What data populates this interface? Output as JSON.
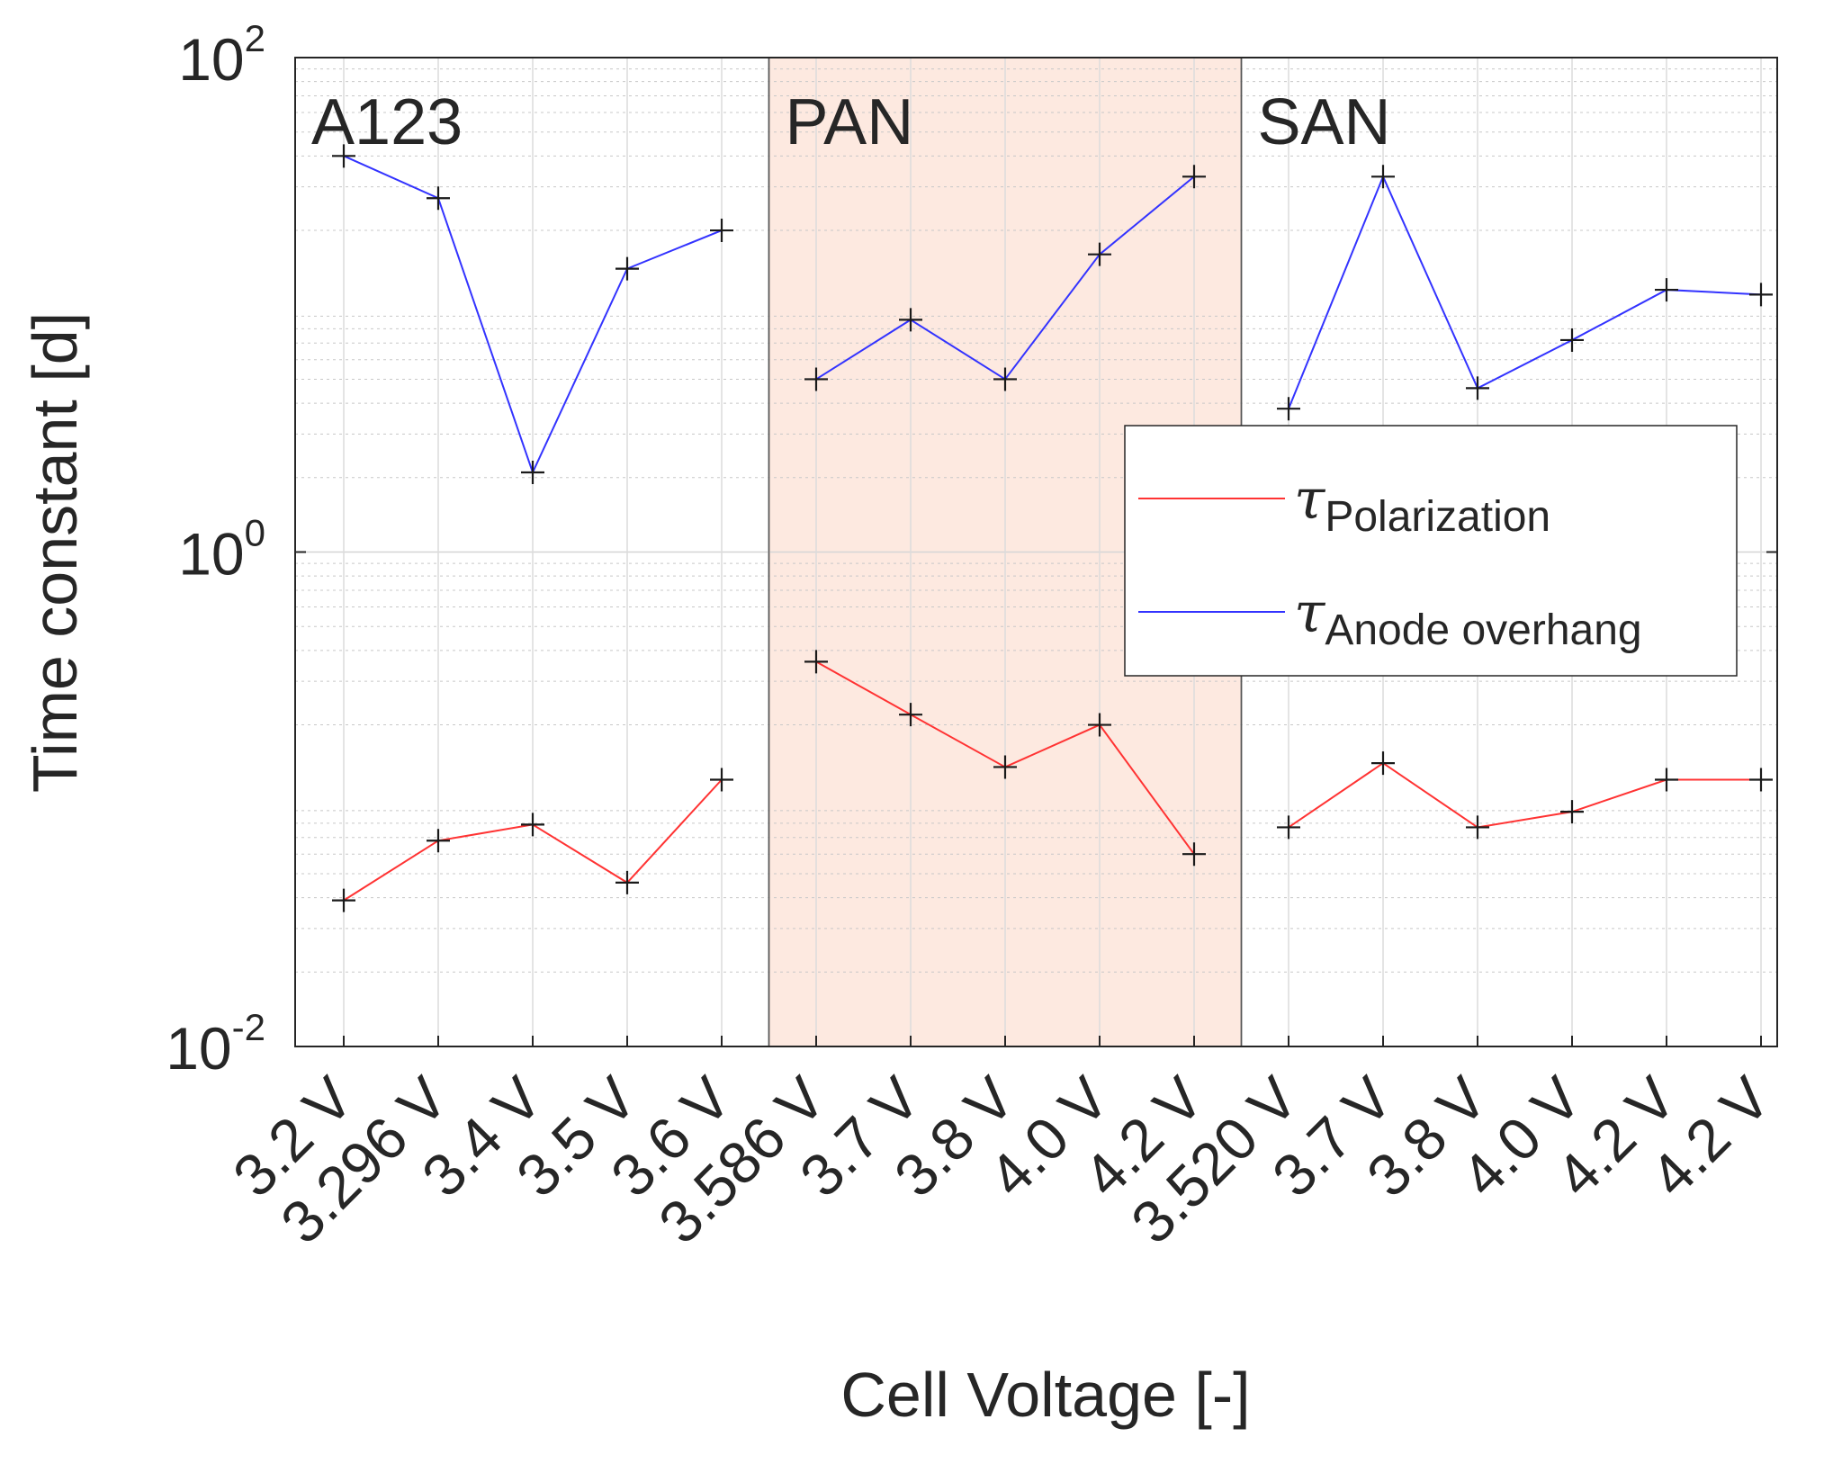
{
  "chart_data": {
    "type": "line",
    "yscale": "log",
    "ylim": [
      0.01,
      100
    ],
    "ylabel": "Time constant [d]",
    "xlabel": "Cell Voltage [-]",
    "y_ticks": [
      {
        "value": 0.01,
        "base": "10",
        "exp": "-2"
      },
      {
        "value": 1,
        "base": "10",
        "exp": "0"
      },
      {
        "value": 100,
        "base": "10",
        "exp": "2"
      }
    ],
    "categories": [
      "3.2 V",
      "3.296 V",
      "3.4 V",
      "3.5 V",
      "3.6 V",
      "3.586 V",
      "3.7 V",
      "3.8 V",
      "4.0 V",
      "4.2 V",
      "3.520 V",
      "3.7 V",
      "3.8 V",
      "4.0 V",
      "4.2 V",
      "4.2 V"
    ],
    "groups": [
      {
        "name": "A123",
        "start": 0,
        "end": 4,
        "highlighted": false
      },
      {
        "name": "PAN",
        "start": 5,
        "end": 9,
        "highlighted": true
      },
      {
        "name": "SAN",
        "start": 10,
        "end": 15,
        "highlighted": false
      }
    ],
    "series": [
      {
        "name": "Polarization",
        "symbol": "τ",
        "color": "#ff3333",
        "segments": [
          [
            0.039,
            0.068,
            0.079,
            0.046,
            0.12
          ],
          [
            0.36,
            0.22,
            0.135,
            0.2,
            0.06
          ],
          [
            0.077,
            0.14,
            0.077,
            0.089,
            0.12,
            0.12
          ]
        ]
      },
      {
        "name": "Anode overhang",
        "symbol": "τ",
        "color": "#3333ff",
        "segments": [
          [
            40,
            27,
            2.1,
            14,
            20
          ],
          [
            5,
            8.7,
            5,
            16,
            33
          ],
          [
            3.8,
            33,
            4.6,
            7.2,
            11.5,
            11
          ]
        ]
      }
    ],
    "marker": "+",
    "marker_color": "#1a1a1a",
    "highlight_color": "#fde9e0",
    "grid": true,
    "legend_position": "right-center"
  }
}
